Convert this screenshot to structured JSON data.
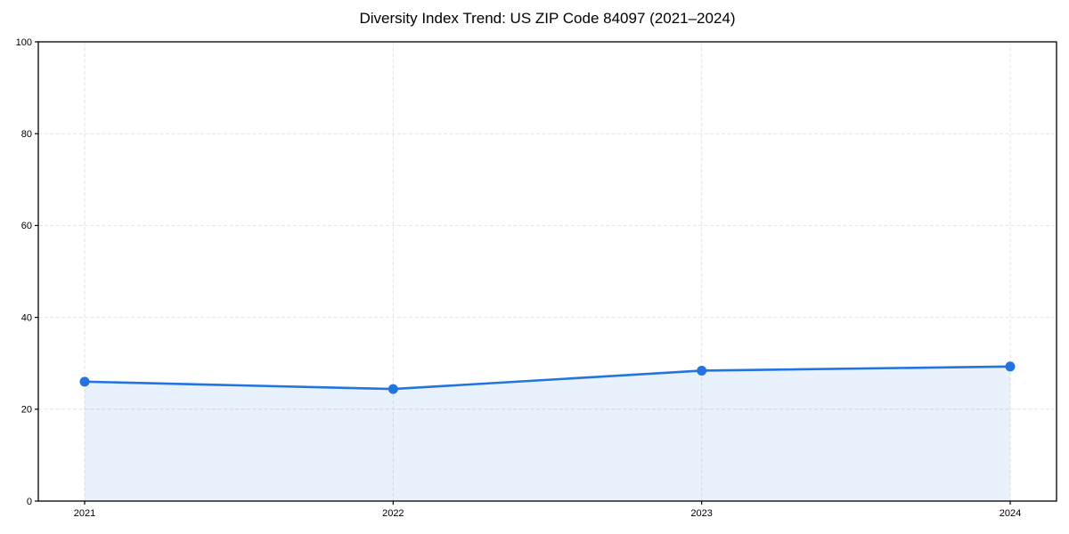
{
  "page": {
    "background": "#ffffff"
  },
  "chart_data": {
    "type": "line",
    "title": "Diversity Index Trend: US ZIP Code 84097 (2021–2024)",
    "x": [
      "2021",
      "2022",
      "2023",
      "2024"
    ],
    "series": [
      {
        "name": "Diversity Index",
        "values": [
          26.0,
          24.4,
          28.4,
          29.3
        ]
      }
    ],
    "xlabel": "",
    "ylabel": "",
    "ylim": [
      0,
      100
    ],
    "yticks": [
      0,
      20,
      40,
      60,
      80,
      100
    ],
    "grid": true,
    "grid_style": "dashed",
    "legend_position": "none",
    "area_fill": true,
    "marker_style": "circle",
    "colors": {
      "line": "#2274e0",
      "marker": "#2274e0",
      "fill": "#2274e0",
      "fill_opacity": 0.1,
      "grid": "#e3e3e3",
      "frame": "#000000",
      "text": "#000000"
    }
  }
}
